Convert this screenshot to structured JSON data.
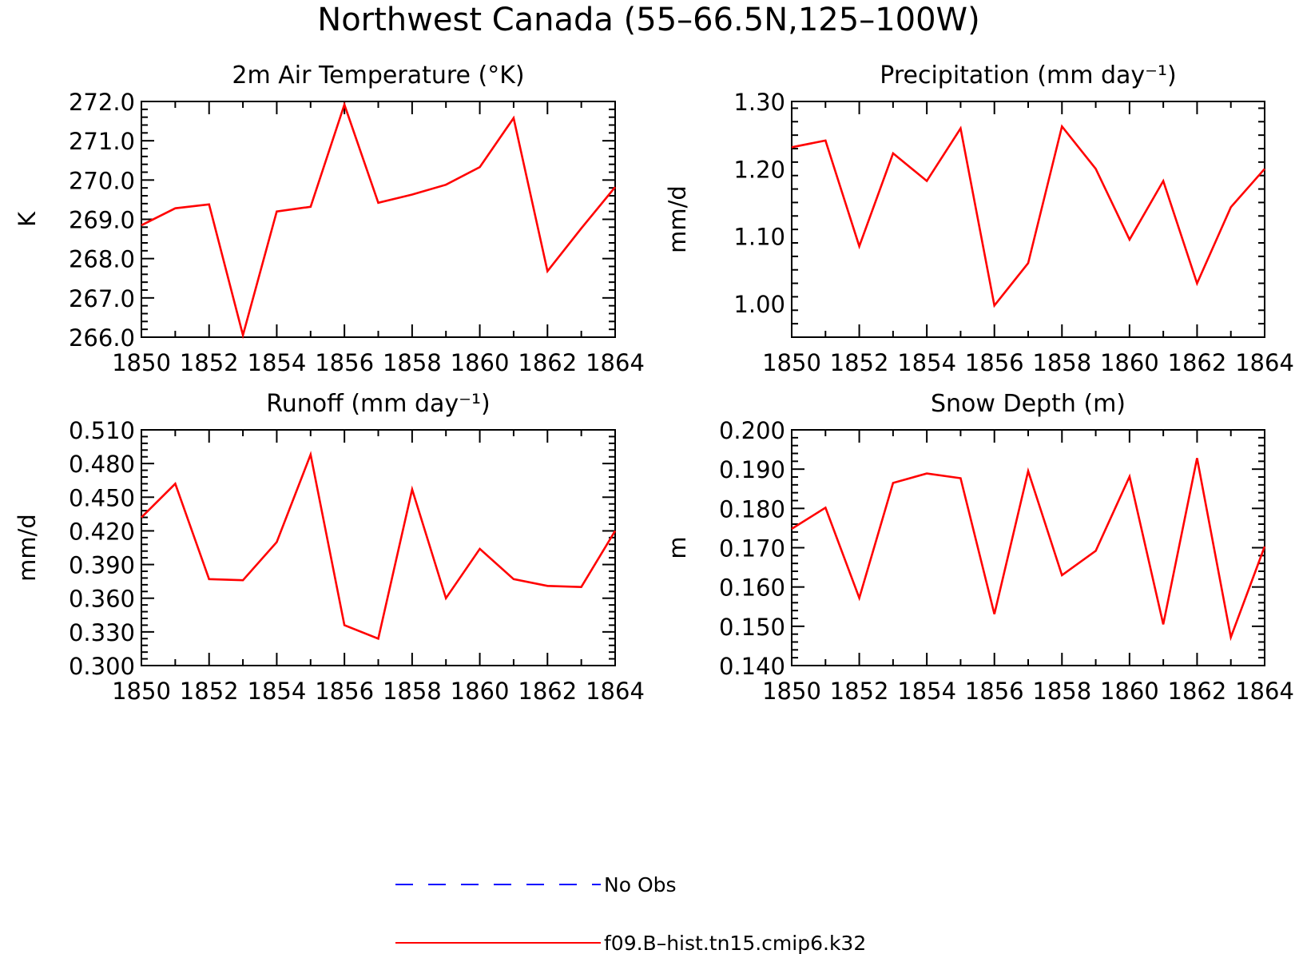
{
  "figure": {
    "title": "Northwest Canada (55–66.5N,125–100W)"
  },
  "chart_data": [
    {
      "type": "line",
      "title": "2m Air Temperature (°K)",
      "ylabel": "K",
      "xlabel": "",
      "xlim": [
        1850,
        1864
      ],
      "ylim": [
        266.0,
        272.0
      ],
      "xticks": [
        1850,
        1852,
        1854,
        1856,
        1858,
        1860,
        1862,
        1864
      ],
      "yticks": [
        "266.0",
        "267.0",
        "268.0",
        "269.0",
        "270.0",
        "271.0",
        "272.0"
      ],
      "x": [
        1850,
        1851,
        1852,
        1853,
        1854,
        1855,
        1856,
        1857,
        1858,
        1859,
        1860,
        1861,
        1862,
        1863,
        1864
      ],
      "series": [
        {
          "name": "f09.B–hist.tn15.cmip6.k32",
          "color": "#ff0000",
          "values": [
            268.85,
            269.28,
            269.38,
            266.05,
            269.2,
            269.32,
            271.92,
            269.42,
            269.63,
            269.88,
            270.33,
            271.58,
            267.68,
            268.77,
            269.82
          ]
        }
      ]
    },
    {
      "type": "line",
      "title": "Precipitation (mm day⁻¹)",
      "ylabel": "mm/d",
      "xlabel": "",
      "xlim": [
        1850,
        1864
      ],
      "ylim": [
        0.95,
        1.3
      ],
      "xticks": [
        1850,
        1852,
        1854,
        1856,
        1858,
        1860,
        1862,
        1864
      ],
      "yticks": [
        "1.00",
        "1.10",
        "1.20",
        "1.30"
      ],
      "x": [
        1850,
        1851,
        1852,
        1853,
        1854,
        1855,
        1856,
        1857,
        1858,
        1859,
        1860,
        1861,
        1862,
        1863,
        1864
      ],
      "series": [
        {
          "name": "f09.B–hist.tn15.cmip6.k32",
          "color": "#ff0000",
          "values": [
            1.232,
            1.242,
            1.085,
            1.223,
            1.182,
            1.26,
            0.997,
            1.06,
            1.263,
            1.2,
            1.095,
            1.182,
            1.03,
            1.143,
            1.2
          ]
        }
      ]
    },
    {
      "type": "line",
      "title": "Runoff (mm day⁻¹)",
      "ylabel": "mm/d",
      "xlabel": "",
      "xlim": [
        1850,
        1864
      ],
      "ylim": [
        0.3,
        0.51
      ],
      "xticks": [
        1850,
        1852,
        1854,
        1856,
        1858,
        1860,
        1862,
        1864
      ],
      "yticks": [
        "0.300",
        "0.330",
        "0.360",
        "0.390",
        "0.420",
        "0.450",
        "0.480",
        "0.510"
      ],
      "x": [
        1850,
        1851,
        1852,
        1853,
        1854,
        1855,
        1856,
        1857,
        1858,
        1859,
        1860,
        1861,
        1862,
        1863,
        1864
      ],
      "series": [
        {
          "name": "f09.B–hist.tn15.cmip6.k32",
          "color": "#ff0000",
          "values": [
            0.432,
            0.462,
            0.377,
            0.376,
            0.41,
            0.488,
            0.336,
            0.324,
            0.457,
            0.36,
            0.404,
            0.377,
            0.371,
            0.37,
            0.42
          ]
        }
      ]
    },
    {
      "type": "line",
      "title": "Snow Depth (m)",
      "ylabel": "m",
      "xlabel": "",
      "xlim": [
        1850,
        1864
      ],
      "ylim": [
        0.14,
        0.2
      ],
      "xticks": [
        1850,
        1852,
        1854,
        1856,
        1858,
        1860,
        1862,
        1864
      ],
      "yticks": [
        "0.140",
        "0.150",
        "0.160",
        "0.170",
        "0.180",
        "0.190",
        "0.200"
      ],
      "x": [
        1850,
        1851,
        1852,
        1853,
        1854,
        1855,
        1856,
        1857,
        1858,
        1859,
        1860,
        1861,
        1862,
        1863,
        1864
      ],
      "series": [
        {
          "name": "f09.B–hist.tn15.cmip6.k32",
          "color": "#ff0000",
          "values": [
            0.1748,
            0.1802,
            0.1572,
            0.1865,
            0.1889,
            0.1877,
            0.1531,
            0.1895,
            0.163,
            0.1692,
            0.1881,
            0.1505,
            0.1928,
            0.1472,
            0.1703
          ]
        }
      ]
    }
  ],
  "legend": {
    "items": [
      {
        "label": "No Obs",
        "color": "#0000ff",
        "style": "dashed"
      },
      {
        "label": "f09.B–hist.tn15.cmip6.k32",
        "color": "#ff0000",
        "style": "solid"
      }
    ]
  }
}
